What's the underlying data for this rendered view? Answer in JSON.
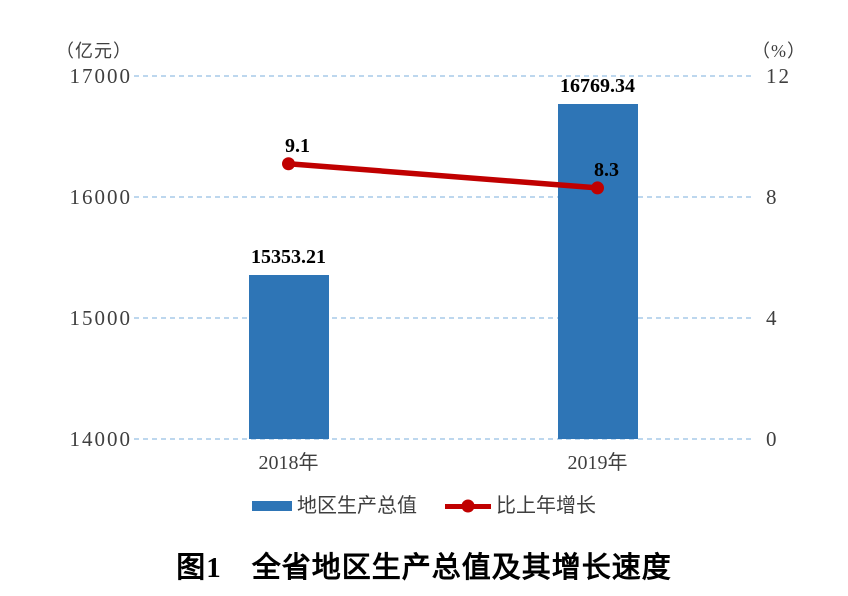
{
  "chart_data": {
    "type": "combo-bar-line",
    "title": "图1　全省地区生产总值及其增长速度",
    "categories": [
      "2018年",
      "2019年"
    ],
    "series": [
      {
        "name": "地区生产总值",
        "type": "bar",
        "axis": "left",
        "values": [
          15353.21,
          16769.34
        ],
        "data_labels": [
          "15353.21",
          "16769.34"
        ],
        "color": "#2E75B6"
      },
      {
        "name": "比上年增长",
        "type": "line",
        "axis": "right",
        "values": [
          9.1,
          8.3
        ],
        "data_labels": [
          "9.1",
          "8.3"
        ],
        "color": "#C00000"
      }
    ],
    "left_axis": {
      "unit": "（亿元）",
      "min": 14000,
      "max": 17000,
      "ticks": [
        "17000",
        "16000",
        "15000",
        "14000"
      ]
    },
    "right_axis": {
      "unit": "（%）",
      "min": 0,
      "max": 12,
      "ticks": [
        "12",
        "8",
        "4",
        "0"
      ]
    },
    "grid": {
      "show": true,
      "color": "#BDD7EE",
      "style": "dashed"
    },
    "legend": {
      "position": "bottom"
    }
  }
}
